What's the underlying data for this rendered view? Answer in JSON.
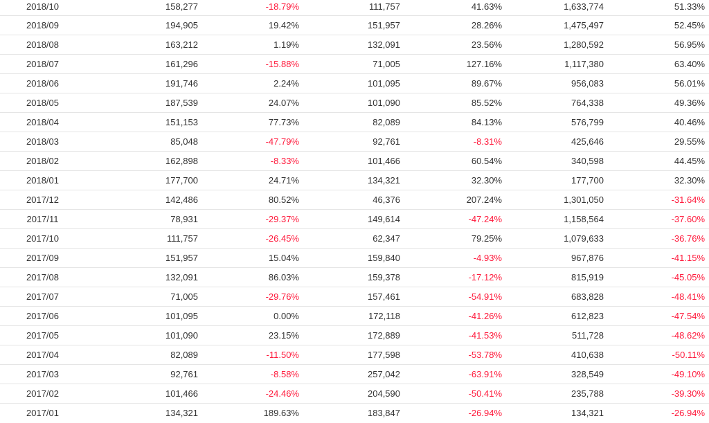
{
  "colors": {
    "negative": "#ff1a3c",
    "text": "#333333",
    "divider": "#e5e5e5"
  },
  "rows": [
    [
      "2018/10",
      "158,277",
      "-18.79%",
      "111,757",
      "41.63%",
      "1,633,774",
      "51.33%"
    ],
    [
      "2018/09",
      "194,905",
      "19.42%",
      "151,957",
      "28.26%",
      "1,475,497",
      "52.45%"
    ],
    [
      "2018/08",
      "163,212",
      "1.19%",
      "132,091",
      "23.56%",
      "1,280,592",
      "56.95%"
    ],
    [
      "2018/07",
      "161,296",
      "-15.88%",
      "71,005",
      "127.16%",
      "1,117,380",
      "63.40%"
    ],
    [
      "2018/06",
      "191,746",
      "2.24%",
      "101,095",
      "89.67%",
      "956,083",
      "56.01%"
    ],
    [
      "2018/05",
      "187,539",
      "24.07%",
      "101,090",
      "85.52%",
      "764,338",
      "49.36%"
    ],
    [
      "2018/04",
      "151,153",
      "77.73%",
      "82,089",
      "84.13%",
      "576,799",
      "40.46%"
    ],
    [
      "2018/03",
      "85,048",
      "-47.79%",
      "92,761",
      "-8.31%",
      "425,646",
      "29.55%"
    ],
    [
      "2018/02",
      "162,898",
      "-8.33%",
      "101,466",
      "60.54%",
      "340,598",
      "44.45%"
    ],
    [
      "2018/01",
      "177,700",
      "24.71%",
      "134,321",
      "32.30%",
      "177,700",
      "32.30%"
    ],
    [
      "2017/12",
      "142,486",
      "80.52%",
      "46,376",
      "207.24%",
      "1,301,050",
      "-31.64%"
    ],
    [
      "2017/11",
      "78,931",
      "-29.37%",
      "149,614",
      "-47.24%",
      "1,158,564",
      "-37.60%"
    ],
    [
      "2017/10",
      "111,757",
      "-26.45%",
      "62,347",
      "79.25%",
      "1,079,633",
      "-36.76%"
    ],
    [
      "2017/09",
      "151,957",
      "15.04%",
      "159,840",
      "-4.93%",
      "967,876",
      "-41.15%"
    ],
    [
      "2017/08",
      "132,091",
      "86.03%",
      "159,378",
      "-17.12%",
      "815,919",
      "-45.05%"
    ],
    [
      "2017/07",
      "71,005",
      "-29.76%",
      "157,461",
      "-54.91%",
      "683,828",
      "-48.41%"
    ],
    [
      "2017/06",
      "101,095",
      "0.00%",
      "172,118",
      "-41.26%",
      "612,823",
      "-47.54%"
    ],
    [
      "2017/05",
      "101,090",
      "23.15%",
      "172,889",
      "-41.53%",
      "511,728",
      "-48.62%"
    ],
    [
      "2017/04",
      "82,089",
      "-11.50%",
      "177,598",
      "-53.78%",
      "410,638",
      "-50.11%"
    ],
    [
      "2017/03",
      "92,761",
      "-8.58%",
      "257,042",
      "-63.91%",
      "328,549",
      "-49.10%"
    ],
    [
      "2017/02",
      "101,466",
      "-24.46%",
      "204,590",
      "-50.41%",
      "235,788",
      "-39.30%"
    ],
    [
      "2017/01",
      "134,321",
      "189.63%",
      "183,847",
      "-26.94%",
      "134,321",
      "-26.94%"
    ]
  ]
}
